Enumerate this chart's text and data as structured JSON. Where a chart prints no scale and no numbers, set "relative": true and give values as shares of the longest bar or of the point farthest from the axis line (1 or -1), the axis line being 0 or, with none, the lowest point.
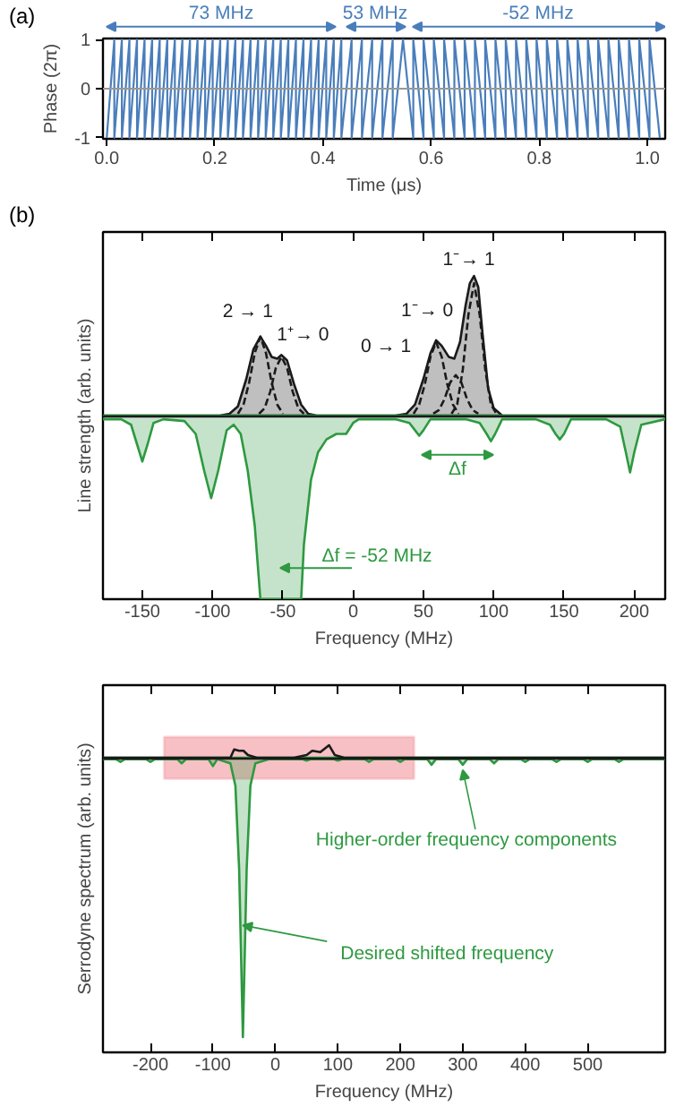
{
  "chart_data": [
    {
      "type": "line",
      "xlabel": "Time (μs)",
      "ylabel": "Phase (2π)",
      "annotations": [
        "(a)",
        "73 MHz",
        "53 MHz",
        "-52 MHz"
      ],
      "xlim": [
        -0.007,
        1.033
      ],
      "ylim": [
        -1.02,
        1.02
      ],
      "xticks": [
        {
          "value": 0,
          "label": "0.0"
        },
        0.2,
        0.4,
        0.6,
        0.8,
        {
          "value": 1,
          "label": "1.0"
        }
      ],
      "yticks": [
        -1,
        0,
        1
      ],
      "ref_lines": [
        {
          "axis": "y",
          "value": 0,
          "color": "#999999"
        }
      ],
      "series": [
        {
          "color": "#4a7ebb",
          "x": [
            0,
            0.014,
            0.014,
            0.028,
            0.028,
            0.042,
            0.042,
            0.056,
            0.056,
            0.07,
            0.07,
            0.084,
            0.084,
            0.098,
            0.098,
            0.112,
            0.112,
            0.126,
            0.126,
            0.14,
            0.14,
            0.154,
            0.154,
            0.168,
            0.168,
            0.182,
            0.182,
            0.196,
            0.196,
            0.21,
            0.21,
            0.224,
            0.224,
            0.238,
            0.238,
            0.252,
            0.252,
            0.266,
            0.266,
            0.28,
            0.28,
            0.294,
            0.294,
            0.308,
            0.308,
            0.322,
            0.322,
            0.336,
            0.336,
            0.35,
            0.35,
            0.364,
            0.364,
            0.378,
            0.378,
            0.392,
            0.392,
            0.406,
            0.406,
            0.42,
            0.42,
            0.434,
            0.434,
            0.453,
            0.453,
            0.472,
            0.472,
            0.491,
            0.491,
            0.51,
            0.51,
            0.529,
            0.529,
            0.548,
            0.548,
            0.567,
            0.567,
            0.586,
            0.586,
            0.605,
            0.605,
            0.624,
            0.624,
            0.643,
            0.643,
            0.662,
            0.662,
            0.681,
            0.681,
            0.7,
            0.7,
            0.719,
            0.719,
            0.738,
            0.738,
            0.757,
            0.757,
            0.776,
            0.776,
            0.795,
            0.795,
            0.814,
            0.814,
            0.833,
            0.833,
            0.852,
            0.852,
            0.871,
            0.871,
            0.89,
            0.89,
            0.909,
            0.909,
            0.928,
            0.928,
            0.947,
            0.947,
            0.966,
            0.966,
            0.985,
            0.985,
            1.004,
            1.004,
            1.023
          ],
          "values": [
            -1,
            1,
            -1,
            1,
            -1,
            1,
            -1,
            1,
            -1,
            1,
            -1,
            1,
            -1,
            1,
            -1,
            1,
            -1,
            1,
            -1,
            1,
            -1,
            1,
            -1,
            1,
            -1,
            1,
            -1,
            1,
            -1,
            1,
            -1,
            1,
            -1,
            1,
            -1,
            1,
            -1,
            1,
            -1,
            1,
            -1,
            1,
            -1,
            1,
            -1,
            1,
            -1,
            1,
            -1,
            1,
            -1,
            1,
            -1,
            1,
            -1,
            1,
            -1,
            1,
            -1,
            1,
            -1,
            1,
            -1,
            1,
            -1,
            1,
            -1,
            1,
            -1,
            1,
            -1,
            1,
            -1,
            1,
            1,
            -1,
            1,
            -1,
            1,
            -1,
            1,
            -1,
            1,
            -1,
            1,
            -1,
            1,
            -1,
            1,
            -1,
            1,
            -1,
            1,
            -1,
            1,
            -1,
            1,
            -1,
            1,
            -1,
            1,
            -1,
            1,
            -1,
            1,
            -1,
            1,
            -1,
            1,
            -1,
            1,
            -1,
            1,
            -1,
            1,
            -1,
            1,
            -1,
            1,
            -1,
            1,
            -1,
            1,
            -1
          ]
        }
      ]
    },
    {
      "type": "area",
      "relative": true,
      "xlabel": "Frequency (MHz)",
      "ylabel": "Line strength (arb. units)",
      "xlim": [
        -178,
        222
      ],
      "xticks": [
        -150,
        -100,
        -50,
        0,
        50,
        100,
        150,
        200
      ],
      "annotations": [
        "(b)",
        {
          "text": "2 → 1",
          "x": -66,
          "y": 0.43
        },
        {
          "text": "1⁺→ 0",
          "x": -51,
          "y": 0.33
        },
        {
          "text": "0 → 1",
          "x": 59,
          "y": 0.41
        },
        {
          "text": "1⁻→ 0",
          "x": 73,
          "y": 0.22
        },
        {
          "text": "1⁻→ 1",
          "x": 86,
          "y": 0.76
        },
        "Δf",
        "Δf = -52 MHz"
      ],
      "series": [
        {
          "type": "area",
          "color": "#1a1a1a",
          "x": [
            -178,
            -95,
            -88,
            -82,
            -76,
            -71,
            -66,
            -62,
            -58,
            -54,
            -51,
            -47,
            -42,
            -37,
            -32,
            -26,
            30,
            38,
            44,
            50,
            55,
            59,
            63,
            68,
            72,
            76,
            80,
            83,
            86,
            89,
            92,
            96,
            100,
            106,
            222
          ],
          "values": [
            0,
            0,
            0.01,
            0.05,
            0.2,
            0.36,
            0.43,
            0.38,
            0.32,
            0.31,
            0.33,
            0.3,
            0.17,
            0.06,
            0.01,
            0,
            0,
            0.01,
            0.06,
            0.2,
            0.34,
            0.41,
            0.38,
            0.32,
            0.31,
            0.4,
            0.6,
            0.72,
            0.76,
            0.7,
            0.45,
            0.15,
            0.04,
            0,
            0
          ]
        },
        {
          "type": "line",
          "line_style": "dashed",
          "color": "#1a1a1a",
          "x": [
            -82,
            -78,
            -74,
            -70,
            -66,
            -62,
            -58,
            -54,
            -50
          ],
          "values": [
            0.01,
            0.06,
            0.18,
            0.34,
            0.43,
            0.34,
            0.18,
            0.06,
            0.01
          ]
        },
        {
          "type": "line",
          "line_style": "dashed",
          "color": "#1a1a1a",
          "x": [
            -67,
            -63,
            -59,
            -55,
            -51,
            -47,
            -43,
            -39,
            -35
          ],
          "values": [
            0.01,
            0.04,
            0.13,
            0.26,
            0.32,
            0.26,
            0.13,
            0.04,
            0.01
          ]
        },
        {
          "type": "line",
          "line_style": "dashed",
          "color": "#1a1a1a",
          "x": [
            43,
            47,
            51,
            55,
            59,
            63,
            67,
            71,
            75
          ],
          "values": [
            0.01,
            0.06,
            0.17,
            0.32,
            0.4,
            0.32,
            0.17,
            0.06,
            0.01
          ]
        },
        {
          "type": "line",
          "line_style": "dashed",
          "color": "#1a1a1a",
          "x": [
            57,
            61,
            65,
            69,
            73,
            77,
            81,
            85,
            89
          ],
          "values": [
            0.01,
            0.03,
            0.09,
            0.18,
            0.22,
            0.18,
            0.09,
            0.03,
            0.01
          ]
        },
        {
          "type": "line",
          "line_style": "dashed",
          "color": "#1a1a1a",
          "x": [
            70,
            74,
            78,
            82,
            86,
            90,
            94,
            98,
            102
          ],
          "values": [
            0.01,
            0.06,
            0.25,
            0.55,
            0.72,
            0.55,
            0.25,
            0.06,
            0.01
          ]
        },
        {
          "type": "area",
          "color": "#2e9940",
          "x": [
            -178,
            -165,
            -158,
            -154,
            -150,
            -146,
            -142,
            -135,
            -120,
            -112,
            -106,
            -101,
            -96,
            -90,
            -85,
            -80,
            -75,
            -70,
            -66,
            -37,
            -35,
            -30,
            -25,
            -19,
            -12,
            -5,
            0,
            4,
            30,
            40,
            44,
            47,
            50,
            55,
            80,
            90,
            95,
            98,
            101,
            106,
            130,
            140,
            144,
            147,
            150,
            155,
            180,
            190,
            194,
            197,
            200,
            205,
            222
          ],
          "values": [
            -0.02,
            -0.02,
            -0.05,
            -0.15,
            -0.25,
            -0.15,
            -0.04,
            -0.02,
            -0.03,
            -0.1,
            -0.3,
            -0.45,
            -0.3,
            -0.08,
            -0.05,
            -0.1,
            -0.3,
            -0.6,
            -1,
            -1,
            -0.7,
            -0.35,
            -0.2,
            -0.13,
            -0.1,
            -0.1,
            -0.04,
            -0.02,
            -0.02,
            -0.04,
            -0.08,
            -0.11,
            -0.08,
            -0.02,
            -0.02,
            -0.04,
            -0.1,
            -0.14,
            -0.1,
            -0.02,
            -0.02,
            -0.05,
            -0.1,
            -0.13,
            -0.1,
            -0.02,
            -0.02,
            -0.06,
            -0.2,
            -0.31,
            -0.2,
            -0.05,
            -0.02
          ]
        }
      ]
    },
    {
      "type": "area",
      "relative": true,
      "xlabel": "Frequency (MHz)",
      "ylabel": "Serrodyne spectrum (arb. units)",
      "xlim": [
        -276,
        624
      ],
      "xticks": [
        -200,
        -100,
        0,
        100,
        200,
        300,
        400,
        500
      ],
      "bands": [
        {
          "axis": "x",
          "from": -178,
          "to": 222,
          "color": "#f08c96"
        }
      ],
      "annotations": [
        {
          "text": "Higher-order frequency components",
          "x": 300,
          "y": -0.025
        },
        {
          "text": "Desired shifted frequency",
          "x": -52,
          "y": -0.6
        }
      ],
      "series": [
        {
          "type": "area",
          "color": "#2e9940",
          "x": [
            -276,
            -255,
            -248,
            -241,
            -207,
            -200,
            -193,
            -157,
            -150,
            -143,
            -107,
            -100,
            -93,
            -72,
            -64,
            -58,
            -52,
            -46,
            -40,
            -32,
            -10,
            43,
            50,
            57,
            93,
            100,
            107,
            143,
            150,
            157,
            193,
            200,
            207,
            243,
            250,
            257,
            293,
            300,
            307,
            343,
            350,
            357,
            393,
            400,
            407,
            443,
            450,
            457,
            493,
            500,
            507,
            543,
            550,
            557,
            624
          ],
          "values": [
            -0.005,
            -0.005,
            -0.015,
            -0.005,
            -0.005,
            -0.015,
            -0.005,
            -0.005,
            -0.02,
            -0.005,
            -0.005,
            -0.03,
            -0.005,
            -0.02,
            -0.1,
            -0.4,
            -1,
            -0.4,
            -0.1,
            -0.02,
            -0.005,
            -0.005,
            -0.01,
            -0.005,
            -0.005,
            -0.01,
            -0.005,
            -0.005,
            -0.015,
            -0.005,
            -0.005,
            -0.015,
            -0.005,
            -0.005,
            -0.025,
            -0.005,
            -0.005,
            -0.025,
            -0.005,
            -0.005,
            -0.02,
            -0.005,
            -0.005,
            -0.015,
            -0.005,
            -0.005,
            -0.015,
            -0.005,
            -0.005,
            -0.015,
            -0.005,
            -0.005,
            -0.015,
            -0.005,
            -0.005
          ]
        },
        {
          "type": "line",
          "color": "#1a1a1a",
          "x": [
            -276,
            -100,
            -72,
            -66,
            -58,
            -51,
            -44,
            -30,
            30,
            50,
            59,
            72,
            86,
            95,
            110,
            624
          ],
          "values": [
            0,
            0,
            0,
            0.03,
            0.025,
            0.025,
            0.01,
            0,
            0,
            0.01,
            0.025,
            0.02,
            0.045,
            0.01,
            0,
            0
          ]
        }
      ]
    }
  ]
}
